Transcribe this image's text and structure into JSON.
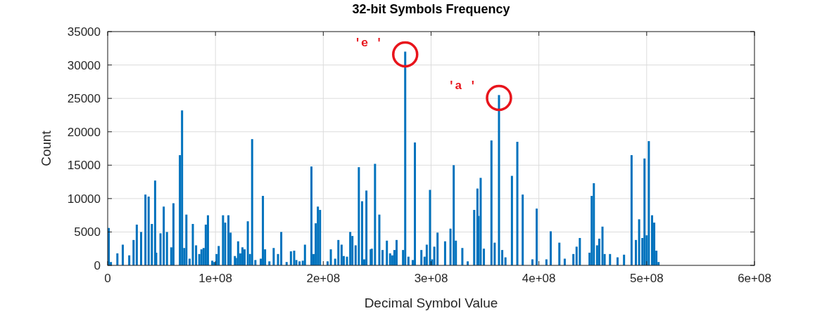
{
  "chart_data": {
    "type": "bar",
    "title": "32-bit Symbols Frequency",
    "xlabel": "Decimal Symbol Value",
    "ylabel": "Count",
    "color": "#0072bd",
    "x": [
      1000000.0,
      3000000.0,
      9000000.0,
      14000000.0,
      20000000.0,
      24000000.0,
      27000000.0,
      31000000.0,
      35000000.0,
      38000000.0,
      41000000.0,
      44000000.0,
      45000000.0,
      49000000.0,
      52000000.0,
      55000000.0,
      59000000.0,
      61000000.0,
      67000000.0,
      69000000.0,
      71000000.0,
      73000000.0,
      76000000.0,
      79000000.0,
      82000000.0,
      85000000.0,
      87000000.0,
      89000000.0,
      91000000.0,
      93000000.0,
      97000000.0,
      99000000.0,
      101000000.0,
      103000000.0,
      107000000.0,
      109000000.0,
      112000000.0,
      114000000.0,
      118000000.0,
      119000000.0,
      121000000.0,
      123000000.0,
      125000000.0,
      127000000.0,
      130000000.0,
      132000000.0,
      134000000.0,
      137000000.0,
      142000000.0,
      144000000.0,
      146000000.0,
      150000000.0,
      154000000.0,
      158000000.0,
      161000000.0,
      166000000.0,
      170000000.0,
      173000000.0,
      175000000.0,
      178000000.0,
      181000000.0,
      183000000.0,
      189000000.0,
      191000000.0,
      193000000.0,
      195000000.0,
      197000000.0,
      204000000.0,
      207000000.0,
      211000000.0,
      214000000.0,
      217000000.0,
      219000000.0,
      222000000.0,
      225000000.0,
      227000000.0,
      230000000.0,
      233000000.0,
      236000000.0,
      238000000.0,
      240000000.0,
      244000000.0,
      245000000.0,
      248000000.0,
      252000000.0,
      255000000.0,
      259000000.0,
      262000000.0,
      264000000.0,
      266000000.0,
      268000000.0,
      274000000.0,
      276000000.0,
      279000000.0,
      283000000.0,
      285000000.0,
      291000000.0,
      294000000.0,
      296000000.0,
      299000000.0,
      301000000.0,
      303000000.0,
      306000000.0,
      313000000.0,
      318000000.0,
      321000000.0,
      323000000.0,
      329000000.0,
      334000000.0,
      340000000.0,
      343000000.0,
      344000000.0,
      346000000.0,
      349000000.0,
      356000000.0,
      359000000.0,
      363000000.0,
      366000000.0,
      369000000.0,
      375000000.0,
      380000000.0,
      385000000.0,
      394000000.0,
      398000000.0,
      407000000.0,
      411000000.0,
      419000000.0,
      424000000.0,
      432000000.0,
      435000000.0,
      438000000.0,
      447000000.0,
      449000000.0,
      451000000.0,
      454000000.0,
      456000000.0,
      459000000.0,
      461000000.0,
      466000000.0,
      473000000.0,
      479000000.0,
      486000000.0,
      490000000.0,
      493000000.0,
      496000000.0,
      498000000.0,
      500000000.0,
      502000000.0,
      505000000.0,
      507000000.0,
      509000000.0,
      511000000.0
    ],
    "values": [
      5600,
      500,
      1800,
      3100,
      1500,
      3800,
      6100,
      5000,
      10600,
      10300,
      6200,
      12700,
      1900,
      4800,
      8800,
      5000,
      2700,
      9300,
      16500,
      23200,
      2600,
      7600,
      1000,
      6200,
      3000,
      1700,
      2400,
      2600,
      6100,
      7500,
      700,
      500,
      1700,
      2900,
      7500,
      6400,
      7500,
      4900,
      1400,
      1100,
      3600,
      1800,
      2700,
      2400,
      6600,
      1700,
      18900,
      800,
      1000,
      10400,
      2400,
      600,
      2600,
      1700,
      5000,
      500,
      2100,
      2200,
      800,
      600,
      700,
      3100,
      14800,
      1700,
      6300,
      8800,
      8300,
      600,
      2400,
      1000,
      3800,
      3100,
      1400,
      1300,
      5000,
      4400,
      3000,
      14700,
      9600,
      900,
      11200,
      2400,
      2500,
      15200,
      7600,
      2300,
      3700,
      1800,
      1500,
      2300,
      3800,
      2300,
      32000,
      1300,
      800,
      18400,
      2300,
      1300,
      3100,
      11300,
      900,
      2800,
      4900,
      3600,
      5500,
      15000,
      3700,
      2600,
      600,
      8300,
      11500,
      7400,
      13100,
      2500,
      18700,
      3400,
      25500,
      2300,
      1200,
      13400,
      18500,
      10600,
      900,
      8500,
      900,
      5100,
      3400,
      1000,
      1700,
      2800,
      4100,
      1900,
      10400,
      12300,
      3000,
      4000,
      5800,
      1700,
      1700,
      1200,
      1600,
      16500,
      3800,
      6900,
      4100,
      16000,
      4500,
      18600,
      7500,
      6400,
      2200,
      500
    ],
    "xlim": [
      0,
      600000000
    ],
    "xticks": [
      0,
      {
        "value": 100000000,
        "label": "1e+08"
      },
      {
        "value": 200000000,
        "label": "2e+08"
      },
      {
        "value": 300000000,
        "label": "3e+08"
      },
      {
        "value": 400000000,
        "label": "4e+08"
      },
      {
        "value": 500000000,
        "label": "5e+08"
      },
      {
        "value": 600000000,
        "label": "6e+08"
      }
    ],
    "ylim": [
      0,
      35000
    ],
    "yticks": [
      0,
      5000,
      10000,
      15000,
      20000,
      25000,
      30000,
      35000
    ],
    "grid": true,
    "annotations": [
      {
        "text": "'e '",
        "x": 276000000,
        "y": 32000
      },
      {
        "text": "'a '",
        "x": 363000000,
        "y": 25500
      }
    ]
  }
}
